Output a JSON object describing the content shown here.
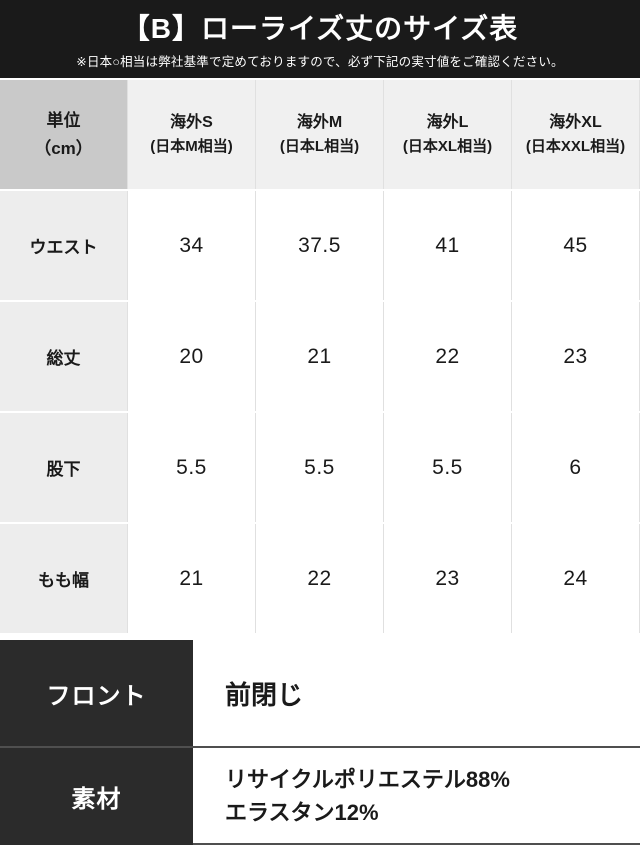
{
  "banner": {
    "title": "【B】ローライズ丈のサイズ表",
    "note": "※日本○相当は弊社基準で定めておりますので、必ず下記の実寸値をご確認ください。"
  },
  "size_table": {
    "unit_label": "単位",
    "unit_sub": "（cm）",
    "columns": [
      {
        "size": "海外S",
        "jp": "(日本M相当)"
      },
      {
        "size": "海外M",
        "jp": "(日本L相当)"
      },
      {
        "size": "海外L",
        "jp": "(日本XL相当)"
      },
      {
        "size": "海外XL",
        "jp": "(日本XXL相当)"
      }
    ],
    "rows": [
      {
        "label": "ウエスト",
        "values": [
          "34",
          "37.5",
          "41",
          "45"
        ]
      },
      {
        "label": "総丈",
        "values": [
          "20",
          "21",
          "22",
          "23"
        ]
      },
      {
        "label": "股下",
        "values": [
          "5.5",
          "5.5",
          "5.5",
          "6"
        ]
      },
      {
        "label": "もも幅",
        "values": [
          "21",
          "22",
          "23",
          "24"
        ]
      }
    ]
  },
  "details": {
    "front_label": "フロント",
    "front_value": "前閉じ",
    "material_label": "素材",
    "material_line1": "リサイクルポリエステル88%",
    "material_line2": "エラスタン12%"
  },
  "colors": {
    "banner_bg": "#1a1a1a",
    "unit_cell_bg": "#c9c9c9",
    "column_header_bg": "#f0f0f0",
    "row_label_bg": "#ededed",
    "detail_label_bg": "#2b2b2b",
    "grid_line": "#e0e0e0",
    "detail_divider": "#4f4f4f"
  },
  "chart_data": {
    "type": "table",
    "title": "【B】ローライズ丈のサイズ表",
    "unit": "cm",
    "columns": [
      "単位（cm）",
      "海外S (日本M相当)",
      "海外M (日本L相当)",
      "海外L (日本XL相当)",
      "海外XL (日本XXL相当)"
    ],
    "rows": [
      [
        "ウエスト",
        34,
        37.5,
        41,
        45
      ],
      [
        "総丈",
        20,
        21,
        22,
        23
      ],
      [
        "股下",
        5.5,
        5.5,
        5.5,
        6
      ],
      [
        "もも幅",
        21,
        22,
        23,
        24
      ]
    ],
    "extra_rows": [
      [
        "フロント",
        "前閉じ"
      ],
      [
        "素材",
        "リサイクルポリエステル88% エラスタン12%"
      ]
    ]
  }
}
